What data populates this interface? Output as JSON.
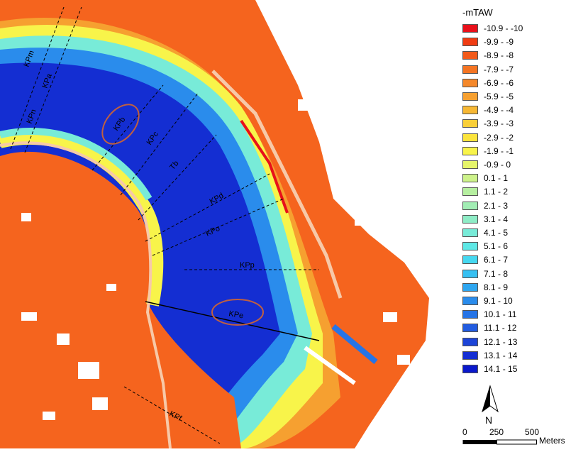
{
  "map": {
    "labels": [
      "KPm",
      "KPn",
      "KPa",
      "KPb",
      "KPc",
      "Tb",
      "KPd",
      "KPo",
      "KPp",
      "KPe",
      "KPf"
    ]
  },
  "legend": {
    "title": "-mTAW",
    "classes": [
      {
        "label": "-10.9 - -10",
        "color": "#e8101a"
      },
      {
        "label": "-9.9 - -9",
        "color": "#f03c12"
      },
      {
        "label": "-8.9 - -8",
        "color": "#f25a1a"
      },
      {
        "label": "-7.9 - -7",
        "color": "#f47422"
      },
      {
        "label": "-6.9 - -6",
        "color": "#f5882a"
      },
      {
        "label": "-5.9 - -5",
        "color": "#f6a030"
      },
      {
        "label": "-4.9 - -4",
        "color": "#f7b834"
      },
      {
        "label": "-3.9 - -3",
        "color": "#f9cf38"
      },
      {
        "label": "-2.9 - -2",
        "color": "#fbe43c"
      },
      {
        "label": "-1.9 - -1",
        "color": "#f8f44a"
      },
      {
        "label": "-0.9 - 0",
        "color": "#e6f56a"
      },
      {
        "label": "0.1 - 1",
        "color": "#cdf28a"
      },
      {
        "label": "1.1 - 2",
        "color": "#b6efa0"
      },
      {
        "label": "2.1 - 3",
        "color": "#a2edb4"
      },
      {
        "label": "3.1 - 4",
        "color": "#8eecc6"
      },
      {
        "label": "4.1 - 5",
        "color": "#78ebd8"
      },
      {
        "label": "5.1 - 6",
        "color": "#5ee8e6"
      },
      {
        "label": "6.1 - 7",
        "color": "#46d8f0"
      },
      {
        "label": "7.1 - 8",
        "color": "#36c0f2"
      },
      {
        "label": "8.1 - 9",
        "color": "#2ea6f0"
      },
      {
        "label": "9.1 - 10",
        "color": "#2a8cec"
      },
      {
        "label": "10.1 - 11",
        "color": "#2674e6"
      },
      {
        "label": "11.1 - 12",
        "color": "#225ce0"
      },
      {
        "label": "12.1 - 13",
        "color": "#1c44d8"
      },
      {
        "label": "13.1 - 14",
        "color": "#142ed2"
      },
      {
        "label": "14.1 - 15",
        "color": "#0a18cc"
      }
    ],
    "north_label": "N",
    "scale": {
      "ticks": [
        "0",
        "250",
        "500"
      ],
      "unit": "Meters"
    }
  }
}
